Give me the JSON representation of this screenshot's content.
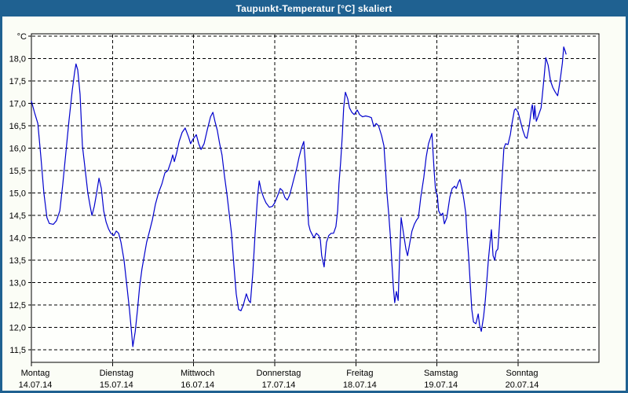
{
  "window": {
    "title": "Taupunkt-Temperatur [°C] skaliert"
  },
  "colors": {
    "titlebar_bg": "#1f6191",
    "frame": "#1f6191",
    "content_bg": "#fbfdf6",
    "plot_bg": "#fefffc",
    "grid": "#000000",
    "line": "#0000cd",
    "label": "#000000"
  },
  "chart_data": {
    "type": "line",
    "title": "Taupunkt-Temperatur [°C] skaliert",
    "y_unit_label": "°C",
    "ylim": [
      11.5,
      18.5
    ],
    "ytick_step": 0.5,
    "grid": "dashed",
    "legend": "none",
    "line_color": "#0000cd",
    "yticks": [
      {
        "value": 18.5,
        "label": ""
      },
      {
        "value": 18.0,
        "label": "18,0"
      },
      {
        "value": 17.5,
        "label": "17,5"
      },
      {
        "value": 17.0,
        "label": "17,0"
      },
      {
        "value": 16.5,
        "label": "16,5"
      },
      {
        "value": 16.0,
        "label": "16,0"
      },
      {
        "value": 15.5,
        "label": "15,5"
      },
      {
        "value": 15.0,
        "label": "15,0"
      },
      {
        "value": 14.5,
        "label": "14,5"
      },
      {
        "value": 14.0,
        "label": "14,0"
      },
      {
        "value": 13.5,
        "label": "13,5"
      },
      {
        "value": 13.0,
        "label": "13,0"
      },
      {
        "value": 12.5,
        "label": "12,5"
      },
      {
        "value": 12.0,
        "label": "12,0"
      },
      {
        "value": 11.5,
        "label": "11,5"
      }
    ],
    "days": [
      {
        "name": "Montag",
        "date": "14.07.14"
      },
      {
        "name": "Dienstag",
        "date": "15.07.14"
      },
      {
        "name": "Mittwoch",
        "date": "16.07.14"
      },
      {
        "name": "Donnerstag",
        "date": "17.07.14"
      },
      {
        "name": "Freitag",
        "date": "18.07.14"
      },
      {
        "name": "Samstag",
        "date": "19.07.14"
      },
      {
        "name": "Sonntag",
        "date": "20.07.14"
      }
    ],
    "x_range_hours": [
      0,
      168
    ],
    "series": [
      {
        "name": "Taupunkt",
        "points_format": "[hours_since_mon_00, temp_C]",
        "points": [
          [
            0,
            17.05
          ],
          [
            0.9,
            16.8
          ],
          [
            1.9,
            16.55
          ],
          [
            2.8,
            15.8
          ],
          [
            3.7,
            15.0
          ],
          [
            4.6,
            14.45
          ],
          [
            5.3,
            14.32
          ],
          [
            6.5,
            14.3
          ],
          [
            7.4,
            14.38
          ],
          [
            8.4,
            14.6
          ],
          [
            9.3,
            15.2
          ],
          [
            10.2,
            15.9
          ],
          [
            11.1,
            16.6
          ],
          [
            12.1,
            17.3
          ],
          [
            12.8,
            17.7
          ],
          [
            13.2,
            17.88
          ],
          [
            13.7,
            17.75
          ],
          [
            14.4,
            17.2
          ],
          [
            15.1,
            16.05
          ],
          [
            15.8,
            15.6
          ],
          [
            16.7,
            15.0
          ],
          [
            17.4,
            14.7
          ],
          [
            17.9,
            14.5
          ],
          [
            18.6,
            14.7
          ],
          [
            19.3,
            15.0
          ],
          [
            20.0,
            15.33
          ],
          [
            20.7,
            15.1
          ],
          [
            21.4,
            14.6
          ],
          [
            22.1,
            14.35
          ],
          [
            22.8,
            14.2
          ],
          [
            23.5,
            14.1
          ],
          [
            24.4,
            14.05
          ],
          [
            25.1,
            14.15
          ],
          [
            25.8,
            14.1
          ],
          [
            26.5,
            13.9
          ],
          [
            27.4,
            13.5
          ],
          [
            28.3,
            12.9
          ],
          [
            29.0,
            12.4
          ],
          [
            29.5,
            12.0
          ],
          [
            30.0,
            11.57
          ],
          [
            30.7,
            11.9
          ],
          [
            31.4,
            12.4
          ],
          [
            32.0,
            12.9
          ],
          [
            32.7,
            13.3
          ],
          [
            33.4,
            13.6
          ],
          [
            34.1,
            13.9
          ],
          [
            34.8,
            14.1
          ],
          [
            35.8,
            14.4
          ],
          [
            36.7,
            14.75
          ],
          [
            37.6,
            15.0
          ],
          [
            38.6,
            15.2
          ],
          [
            39.5,
            15.45
          ],
          [
            40.4,
            15.5
          ],
          [
            41.3,
            15.7
          ],
          [
            41.8,
            15.85
          ],
          [
            42.3,
            15.7
          ],
          [
            43.0,
            15.9
          ],
          [
            43.7,
            16.15
          ],
          [
            44.6,
            16.35
          ],
          [
            45.5,
            16.45
          ],
          [
            46.5,
            16.25
          ],
          [
            47.1,
            16.1
          ],
          [
            47.8,
            16.2
          ],
          [
            48.8,
            16.3
          ],
          [
            49.5,
            16.1
          ],
          [
            50.2,
            15.97
          ],
          [
            51.1,
            16.1
          ],
          [
            52.0,
            16.4
          ],
          [
            53.0,
            16.7
          ],
          [
            53.7,
            16.8
          ],
          [
            54.3,
            16.6
          ],
          [
            55.0,
            16.4
          ],
          [
            55.7,
            16.1
          ],
          [
            56.4,
            15.85
          ],
          [
            57.1,
            15.4
          ],
          [
            57.8,
            15.0
          ],
          [
            58.5,
            14.55
          ],
          [
            59.2,
            14.1
          ],
          [
            59.9,
            13.4
          ],
          [
            60.6,
            12.75
          ],
          [
            61.3,
            12.4
          ],
          [
            62.0,
            12.37
          ],
          [
            62.7,
            12.5
          ],
          [
            63.6,
            12.75
          ],
          [
            64.3,
            12.6
          ],
          [
            64.8,
            12.55
          ],
          [
            65.5,
            13.2
          ],
          [
            66.2,
            14.1
          ],
          [
            66.9,
            14.9
          ],
          [
            67.4,
            15.27
          ],
          [
            68.0,
            15.05
          ],
          [
            68.7,
            14.9
          ],
          [
            69.4,
            14.78
          ],
          [
            70.4,
            14.68
          ],
          [
            71.3,
            14.7
          ],
          [
            72.0,
            14.78
          ],
          [
            72.9,
            14.95
          ],
          [
            73.6,
            15.1
          ],
          [
            74.3,
            15.05
          ],
          [
            75.0,
            14.9
          ],
          [
            75.7,
            14.84
          ],
          [
            76.4,
            14.95
          ],
          [
            77.1,
            15.15
          ],
          [
            77.8,
            15.36
          ],
          [
            78.5,
            15.55
          ],
          [
            79.2,
            15.8
          ],
          [
            79.9,
            16.0
          ],
          [
            80.6,
            16.15
          ],
          [
            81.1,
            15.6
          ],
          [
            81.5,
            15.0
          ],
          [
            82.0,
            14.3
          ],
          [
            82.5,
            14.16
          ],
          [
            82.9,
            14.1
          ],
          [
            83.6,
            14.0
          ],
          [
            84.3,
            14.1
          ],
          [
            85.0,
            14.05
          ],
          [
            85.5,
            13.95
          ],
          [
            85.9,
            13.6
          ],
          [
            86.6,
            13.35
          ],
          [
            87.3,
            13.9
          ],
          [
            88.0,
            14.05
          ],
          [
            88.7,
            14.1
          ],
          [
            89.4,
            14.1
          ],
          [
            90.1,
            14.25
          ],
          [
            90.6,
            14.6
          ],
          [
            91.0,
            15.2
          ],
          [
            91.5,
            15.7
          ],
          [
            92.0,
            16.3
          ],
          [
            92.4,
            16.9
          ],
          [
            92.9,
            17.25
          ],
          [
            93.6,
            17.1
          ],
          [
            94.1,
            16.9
          ],
          [
            94.8,
            16.8
          ],
          [
            95.5,
            16.75
          ],
          [
            96.4,
            16.85
          ],
          [
            97.1,
            16.75
          ],
          [
            98.0,
            16.7
          ],
          [
            98.9,
            16.72
          ],
          [
            99.9,
            16.7
          ],
          [
            100.6,
            16.68
          ],
          [
            101.3,
            16.48
          ],
          [
            102.0,
            16.55
          ],
          [
            102.7,
            16.5
          ],
          [
            103.6,
            16.28
          ],
          [
            104.3,
            16.05
          ],
          [
            104.8,
            15.5
          ],
          [
            105.2,
            15.0
          ],
          [
            105.7,
            14.55
          ],
          [
            106.2,
            14.05
          ],
          [
            106.6,
            13.5
          ],
          [
            107.1,
            12.9
          ],
          [
            107.5,
            12.55
          ],
          [
            108.0,
            12.8
          ],
          [
            108.5,
            12.6
          ],
          [
            108.9,
            13.5
          ],
          [
            109.4,
            14.45
          ],
          [
            110.1,
            14.1
          ],
          [
            110.8,
            13.75
          ],
          [
            111.3,
            13.6
          ],
          [
            112.0,
            13.9
          ],
          [
            112.6,
            14.15
          ],
          [
            113.3,
            14.3
          ],
          [
            114.0,
            14.4
          ],
          [
            114.5,
            14.45
          ],
          [
            115.2,
            14.9
          ],
          [
            116.1,
            15.35
          ],
          [
            116.8,
            15.8
          ],
          [
            117.5,
            16.1
          ],
          [
            118.5,
            16.33
          ],
          [
            119.2,
            15.45
          ],
          [
            119.6,
            15.05
          ],
          [
            120.1,
            14.95
          ],
          [
            120.5,
            14.6
          ],
          [
            121.2,
            14.5
          ],
          [
            121.7,
            14.55
          ],
          [
            122.2,
            14.31
          ],
          [
            122.9,
            14.45
          ],
          [
            123.8,
            14.9
          ],
          [
            124.5,
            15.1
          ],
          [
            125.2,
            15.15
          ],
          [
            125.7,
            15.1
          ],
          [
            126.4,
            15.25
          ],
          [
            126.8,
            15.3
          ],
          [
            127.5,
            15.05
          ],
          [
            128.0,
            14.83
          ],
          [
            128.5,
            14.55
          ],
          [
            128.9,
            14.05
          ],
          [
            129.4,
            13.55
          ],
          [
            129.9,
            12.9
          ],
          [
            130.3,
            12.4
          ],
          [
            130.8,
            12.12
          ],
          [
            131.5,
            12.08
          ],
          [
            132.2,
            12.3
          ],
          [
            132.6,
            12.05
          ],
          [
            133.1,
            11.91
          ],
          [
            133.8,
            12.25
          ],
          [
            134.3,
            12.6
          ],
          [
            134.7,
            13.0
          ],
          [
            135.2,
            13.5
          ],
          [
            135.7,
            13.9
          ],
          [
            136.1,
            14.18
          ],
          [
            136.6,
            13.6
          ],
          [
            137.1,
            13.5
          ],
          [
            137.5,
            13.7
          ],
          [
            138.0,
            13.75
          ],
          [
            138.5,
            14.3
          ],
          [
            138.9,
            14.9
          ],
          [
            139.4,
            15.5
          ],
          [
            139.8,
            16.0
          ],
          [
            140.3,
            16.1
          ],
          [
            141.0,
            16.08
          ],
          [
            141.7,
            16.3
          ],
          [
            142.2,
            16.55
          ],
          [
            142.9,
            16.85
          ],
          [
            143.3,
            16.88
          ],
          [
            144.0,
            16.8
          ],
          [
            144.7,
            16.6
          ],
          [
            145.4,
            16.4
          ],
          [
            146.1,
            16.25
          ],
          [
            146.6,
            16.22
          ],
          [
            147.3,
            16.5
          ],
          [
            148.0,
            16.9
          ],
          [
            148.2,
            16.97
          ],
          [
            148.7,
            16.65
          ],
          [
            148.9,
            16.95
          ],
          [
            149.4,
            16.6
          ],
          [
            150.1,
            16.75
          ],
          [
            150.8,
            16.9
          ],
          [
            151.2,
            17.2
          ],
          [
            151.7,
            17.6
          ],
          [
            152.2,
            18.02
          ],
          [
            152.9,
            17.85
          ],
          [
            153.6,
            17.5
          ],
          [
            154.3,
            17.35
          ],
          [
            155.0,
            17.25
          ],
          [
            155.7,
            17.17
          ],
          [
            156.1,
            17.35
          ],
          [
            156.6,
            17.6
          ],
          [
            157.1,
            17.9
          ],
          [
            157.5,
            18.26
          ],
          [
            158.0,
            18.15
          ],
          [
            158.2,
            18.1
          ]
        ]
      }
    ]
  }
}
